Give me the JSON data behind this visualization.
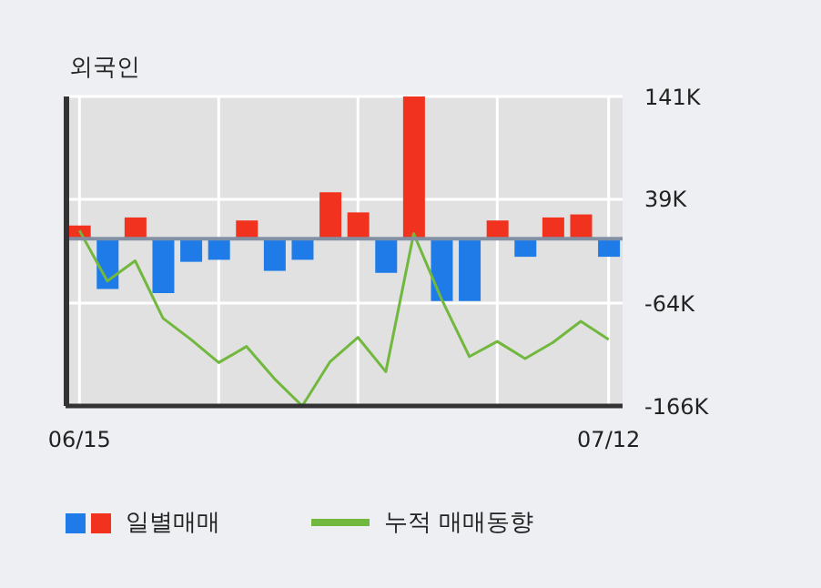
{
  "chart_data": {
    "type": "bar",
    "title": "외국인",
    "categories": [
      "06/15",
      null,
      null,
      null,
      null,
      null,
      null,
      null,
      null,
      null,
      null,
      null,
      null,
      null,
      null,
      null,
      null,
      null,
      null,
      "07/12"
    ],
    "series": [
      {
        "name": "일별매매",
        "colors": [
          "#f0321e",
          "#1e7be8",
          "#f0321e",
          "#1e7be8",
          "#1e7be8",
          "#1e7be8",
          "#f0321e",
          "#1e7be8",
          "#1e7be8",
          "#f0321e",
          "#f0321e",
          "#1e7be8",
          "#f0321e",
          "#1e7be8",
          "#1e7be8",
          "#f0321e",
          "#1e7be8",
          "#f0321e",
          "#f0321e",
          "#1e7be8"
        ],
        "values": [
          13,
          -50,
          21,
          -54,
          -23,
          -21,
          18,
          -32,
          -21,
          46,
          26,
          -34,
          141,
          -62,
          -62,
          18,
          -18,
          21,
          24,
          -18
        ]
      },
      {
        "name": "누적 매매동향",
        "type": "line",
        "color": "#72b83e",
        "values": [
          8,
          -42,
          -22,
          -79,
          -100,
          -123,
          -107,
          -139,
          -166,
          -122,
          -98,
          -132,
          5,
          -60,
          -117,
          -102,
          -119,
          -103,
          -82,
          -100
        ]
      }
    ],
    "ylim": [
      -166,
      141
    ],
    "yticks": [
      {
        "value": 141,
        "label": "141K"
      },
      {
        "value": 39,
        "label": "39K"
      },
      {
        "value": -64,
        "label": "-64K"
      },
      {
        "value": -166,
        "label": "-166K"
      }
    ],
    "ref_lines": [
      {
        "axis": "y",
        "value": 0,
        "color": "#8390a3"
      }
    ],
    "grid": true,
    "legend": "bottom left",
    "marker": "none"
  }
}
